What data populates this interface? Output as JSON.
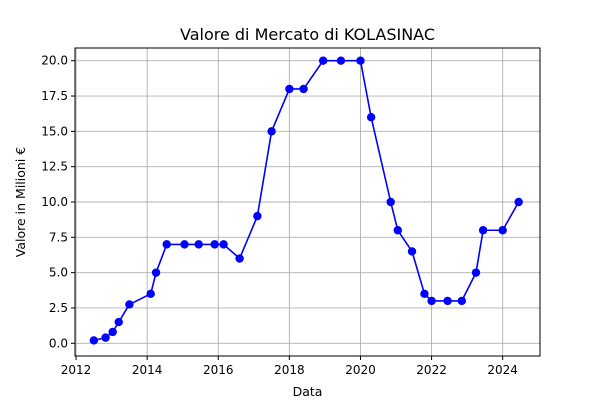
{
  "chart_data": {
    "type": "line",
    "title": "Valore di Mercato di KOLASINAC",
    "xlabel": "Data",
    "ylabel": "Valore in Milioni €",
    "xlim": [
      2011.97,
      2025.05
    ],
    "ylim": [
      -0.9,
      20.9
    ],
    "grid": true,
    "x_ticks": [
      2012,
      2014,
      2016,
      2018,
      2020,
      2022,
      2024
    ],
    "x_tick_labels": [
      "2012",
      "2014",
      "2016",
      "2018",
      "2020",
      "2022",
      "2024"
    ],
    "y_ticks": [
      0,
      2.5,
      5,
      7.5,
      10,
      12.5,
      15,
      17.5,
      20
    ],
    "y_tick_labels": [
      "0.0",
      "2.5",
      "5.0",
      "7.5",
      "10.0",
      "12.5",
      "15.0",
      "17.5",
      "20.0"
    ],
    "color": "#0000ff",
    "series": [
      {
        "x": [
          2012.5,
          2012.83,
          2013.03,
          2013.2,
          2013.5,
          2014.1,
          2014.25,
          2014.55,
          2015.05,
          2015.45,
          2015.9,
          2016.15,
          2016.6,
          2017.1,
          2017.5,
          2018.0,
          2018.4,
          2018.95,
          2019.45,
          2020.0,
          2020.3,
          2020.85,
          2021.05,
          2021.45,
          2021.8,
          2022.0,
          2022.45,
          2022.85,
          2023.25,
          2023.45,
          2024.0,
          2024.45
        ],
        "y": [
          0.2,
          0.4,
          0.8,
          1.5,
          2.75,
          3.5,
          5.0,
          7.0,
          7.0,
          7.0,
          7.0,
          7.0,
          6.0,
          9.0,
          15.0,
          18.0,
          18.0,
          20.0,
          20.0,
          20.0,
          16.0,
          10.0,
          8.0,
          6.5,
          3.5,
          3.0,
          3.0,
          3.0,
          5.0,
          8.0,
          8.0,
          10.0
        ]
      }
    ]
  }
}
